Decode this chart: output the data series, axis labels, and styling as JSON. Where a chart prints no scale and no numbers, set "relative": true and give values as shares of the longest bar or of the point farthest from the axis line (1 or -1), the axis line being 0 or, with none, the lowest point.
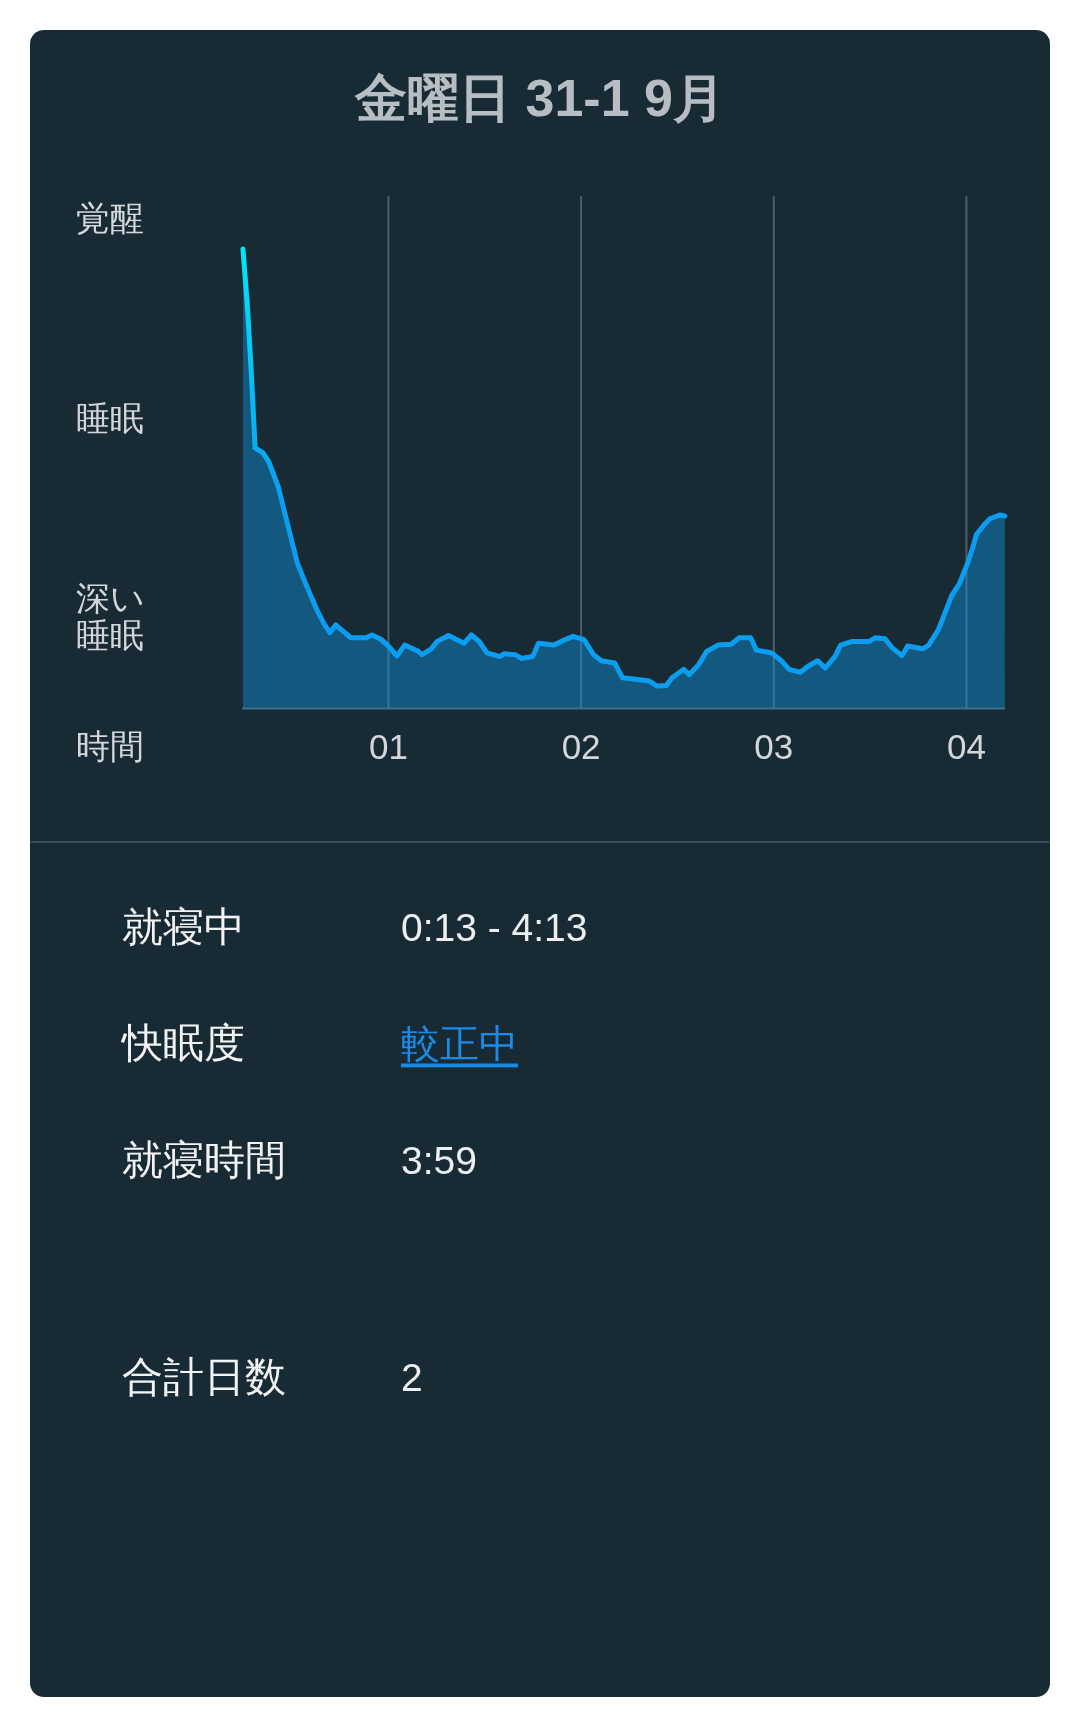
{
  "chart_data": [
    {
      "type": "area",
      "title": "金曜日 31-1 9月",
      "xlabel": "時間",
      "relative": true,
      "grid": "x",
      "xlim": [
        0.24,
        4.2
      ],
      "xticks": [
        {
          "value": 1,
          "label": "01"
        },
        {
          "value": 2,
          "label": "02"
        },
        {
          "value": 3,
          "label": "03"
        },
        {
          "value": 4,
          "label": "04"
        }
      ],
      "annotations": [
        "覚醒",
        "睡眠",
        "深い睡眠"
      ],
      "x": [
        0.245,
        0.268,
        0.288,
        0.308,
        0.348,
        0.378,
        0.428,
        0.467,
        0.527,
        0.567,
        0.626,
        0.666,
        0.696,
        0.726,
        0.805,
        0.885,
        0.914,
        0.964,
        1.004,
        1.044,
        1.084,
        1.153,
        1.173,
        1.223,
        1.253,
        1.312,
        1.392,
        1.431,
        1.471,
        1.511,
        1.58,
        1.6,
        1.66,
        1.69,
        1.749,
        1.779,
        1.859,
        1.918,
        1.958,
        2.015,
        2.065,
        2.105,
        2.174,
        2.214,
        2.293,
        2.353,
        2.393,
        2.442,
        2.472,
        2.532,
        2.562,
        2.611,
        2.651,
        2.711,
        2.78,
        2.82,
        2.88,
        2.91,
        2.989,
        3.039,
        3.079,
        3.138,
        3.178,
        3.228,
        3.267,
        3.317,
        3.347,
        3.407,
        3.496,
        3.526,
        3.576,
        3.615,
        3.665,
        3.695,
        3.774,
        3.804,
        3.854,
        3.924,
        3.963,
        4.003,
        4.033,
        4.052,
        4.092,
        4.122,
        4.172,
        4.199
      ],
      "series": [
        {
          "color": "#0b9df0",
          "values": [
            1.0,
            0.875,
            0.733,
            0.567,
            0.557,
            0.538,
            0.483,
            0.417,
            0.317,
            0.275,
            0.217,
            0.184,
            0.165,
            0.182,
            0.154,
            0.154,
            0.16,
            0.15,
            0.134,
            0.114,
            0.138,
            0.125,
            0.117,
            0.13,
            0.146,
            0.159,
            0.142,
            0.16,
            0.146,
            0.121,
            0.113,
            0.119,
            0.117,
            0.109,
            0.113,
            0.142,
            0.138,
            0.15,
            0.157,
            0.15,
            0.117,
            0.104,
            0.099,
            0.067,
            0.063,
            0.06,
            0.049,
            0.05,
            0.067,
            0.085,
            0.074,
            0.096,
            0.124,
            0.138,
            0.14,
            0.154,
            0.154,
            0.127,
            0.121,
            0.104,
            0.085,
            0.079,
            0.092,
            0.104,
            0.088,
            0.113,
            0.138,
            0.146,
            0.146,
            0.154,
            0.152,
            0.132,
            0.115,
            0.136,
            0.13,
            0.138,
            0.171,
            0.246,
            0.271,
            0.313,
            0.35,
            0.379,
            0.4,
            0.413,
            0.421,
            0.419
          ]
        }
      ]
    },
    {
      "type": "other",
      "annotations": [
        "就寝中",
        "0:13 - 4:13",
        "快眠度",
        "較正中",
        "就寝時間",
        "3:59",
        "合計日数",
        "2"
      ]
    }
  ]
}
